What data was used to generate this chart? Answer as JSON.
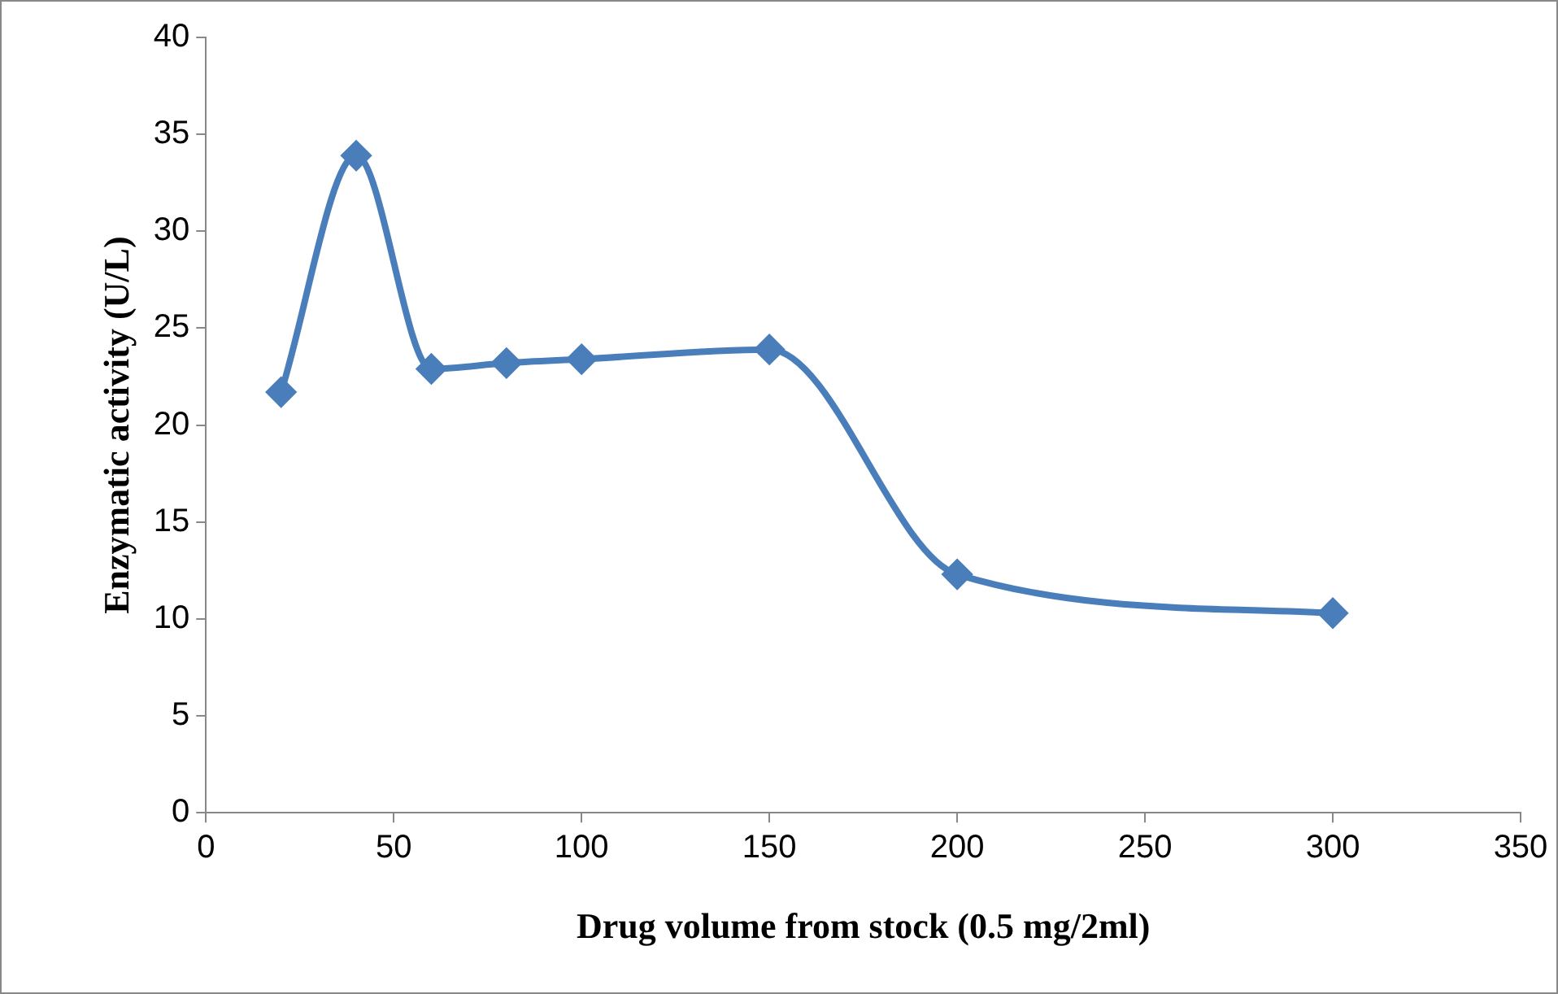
{
  "chart_data": {
    "type": "line",
    "xlabel": "Drug volume from stock (0.5 mg/2ml)",
    "ylabel": "Enzymatic activity (U/L)",
    "x": [
      20,
      40,
      60,
      80,
      100,
      150,
      200,
      300
    ],
    "series": [
      {
        "color": "#4a7ebb",
        "values": [
          21.7,
          33.9,
          22.9,
          23.2,
          23.4,
          23.9,
          12.3,
          10.3
        ]
      }
    ],
    "xlim": [
      0,
      350
    ],
    "xticks": [
      0,
      50,
      100,
      150,
      200,
      250,
      300,
      350
    ],
    "ylim": [
      0,
      40
    ],
    "yticks": [
      0,
      5,
      10,
      15,
      20,
      25,
      30,
      35,
      40
    ],
    "grid": false,
    "legend": false,
    "marker": "diamond",
    "line_style": "solid"
  }
}
